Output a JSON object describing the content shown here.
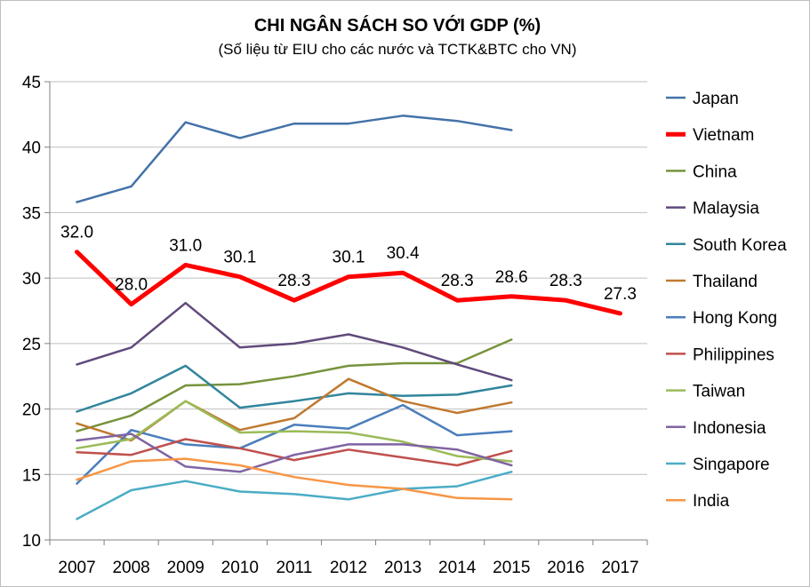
{
  "chart_data": {
    "type": "line",
    "title": "CHI NGÂN SÁCH SO VỚI GDP (%)",
    "subtitle": "(Số liệu từ EIU cho các nước và TCTK&BTC cho VN)",
    "x": [
      "2007",
      "2008",
      "2009",
      "2010",
      "2011",
      "2012",
      "2013",
      "2014",
      "2015",
      "2016",
      "2017"
    ],
    "ylim": [
      10,
      45
    ],
    "yticks": [
      10,
      15,
      20,
      25,
      30,
      35,
      40,
      45
    ],
    "grid": true,
    "legend_position": "right",
    "series": [
      {
        "name": "Japan",
        "color": "#4472a8",
        "width": 2.5,
        "values": [
          35.8,
          37.0,
          41.9,
          40.7,
          41.8,
          41.8,
          42.4,
          42.0,
          41.3,
          null,
          null
        ]
      },
      {
        "name": "Vietnam",
        "color": "#ff0000",
        "width": 5,
        "values": [
          32.0,
          28.0,
          31.0,
          30.1,
          28.3,
          30.1,
          30.4,
          28.3,
          28.6,
          28.3,
          27.3
        ],
        "labels": [
          "32.0",
          "28.0",
          "31.0",
          "30.1",
          "28.3",
          "30.1",
          "30.4",
          "28.3",
          "28.6",
          "28.3",
          "27.3"
        ]
      },
      {
        "name": "China",
        "color": "#77933c",
        "width": 2.5,
        "values": [
          18.3,
          19.5,
          21.8,
          21.9,
          22.5,
          23.3,
          23.5,
          23.5,
          25.3,
          null,
          null
        ]
      },
      {
        "name": "Malaysia",
        "color": "#604a7b",
        "width": 2.5,
        "values": [
          23.4,
          24.7,
          28.1,
          24.7,
          25.0,
          25.7,
          24.7,
          23.4,
          22.2,
          null,
          null
        ]
      },
      {
        "name": "South Korea",
        "color": "#31859c",
        "width": 2.5,
        "values": [
          19.8,
          21.2,
          23.3,
          20.1,
          20.6,
          21.2,
          21.0,
          21.1,
          21.8,
          null,
          null
        ]
      },
      {
        "name": "Thailand",
        "color": "#c0792f",
        "width": 2.5,
        "values": [
          18.9,
          17.6,
          20.6,
          18.4,
          19.3,
          22.3,
          20.6,
          19.7,
          20.5,
          null,
          null
        ]
      },
      {
        "name": "Hong Kong",
        "color": "#4a7ebb",
        "width": 2.5,
        "values": [
          14.3,
          18.4,
          17.3,
          17.0,
          18.8,
          18.5,
          20.3,
          18.0,
          18.3,
          null,
          null
        ]
      },
      {
        "name": "Philippines",
        "color": "#c0504d",
        "width": 2.5,
        "values": [
          16.7,
          16.5,
          17.7,
          17.0,
          16.1,
          16.9,
          16.3,
          15.7,
          16.8,
          null,
          null
        ]
      },
      {
        "name": "Taiwan",
        "color": "#9bbb59",
        "width": 2.5,
        "values": [
          17.0,
          17.7,
          20.6,
          18.2,
          18.3,
          18.2,
          17.5,
          16.4,
          16.0,
          null,
          null
        ]
      },
      {
        "name": "Indonesia",
        "color": "#8064a2",
        "width": 2.5,
        "values": [
          17.6,
          18.1,
          15.6,
          15.2,
          16.5,
          17.3,
          17.3,
          16.9,
          15.7,
          null,
          null
        ]
      },
      {
        "name": "Singapore",
        "color": "#4bacc6",
        "width": 2.5,
        "values": [
          11.6,
          13.8,
          14.5,
          13.7,
          13.5,
          13.1,
          13.9,
          14.1,
          15.2,
          null,
          null
        ]
      },
      {
        "name": "India",
        "color": "#f79646",
        "width": 2.5,
        "values": [
          14.6,
          16.0,
          16.2,
          15.7,
          14.8,
          14.2,
          13.9,
          13.2,
          13.1,
          null,
          null
        ]
      }
    ]
  }
}
